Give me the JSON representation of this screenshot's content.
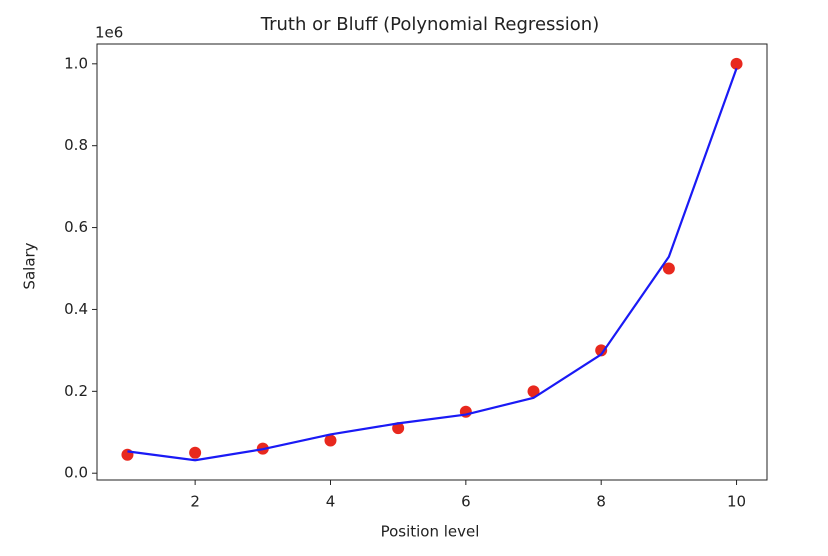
{
  "chart_data": {
    "type": "scatter-line",
    "title": "Truth or Bluff (Polynomial Regression)",
    "x_label": "Position level",
    "y_label": "Salary",
    "y_offset_text": "1e6",
    "x": [
      1,
      2,
      3,
      4,
      5,
      6,
      7,
      8,
      9,
      10
    ],
    "series": [
      {
        "kind": "scatter",
        "color": "#e8281e",
        "values": [
          45000,
          50000,
          60000,
          80000,
          110000,
          150000,
          200000,
          300000,
          500000,
          1000000
        ]
      },
      {
        "kind": "line",
        "color": "#1a1af5",
        "values": [
          53357,
          31760,
          58642,
          94632,
          121724,
          143275,
          184003,
          289994,
          528694,
          988916
        ]
      }
    ],
    "xlim": [
      0.55,
      10.45
    ],
    "xticks": [
      2,
      4,
      6,
      8,
      10
    ],
    "ylim": [
      -16600,
      1048400
    ],
    "yticks": [
      {
        "value": 0,
        "label": "0.0"
      },
      {
        "value": 200000,
        "label": "0.2"
      },
      {
        "value": 400000,
        "label": "0.4"
      },
      {
        "value": 600000,
        "label": "0.6"
      },
      {
        "value": 800000,
        "label": "0.8"
      },
      {
        "value": 1000000,
        "label": "1.0"
      }
    ]
  }
}
